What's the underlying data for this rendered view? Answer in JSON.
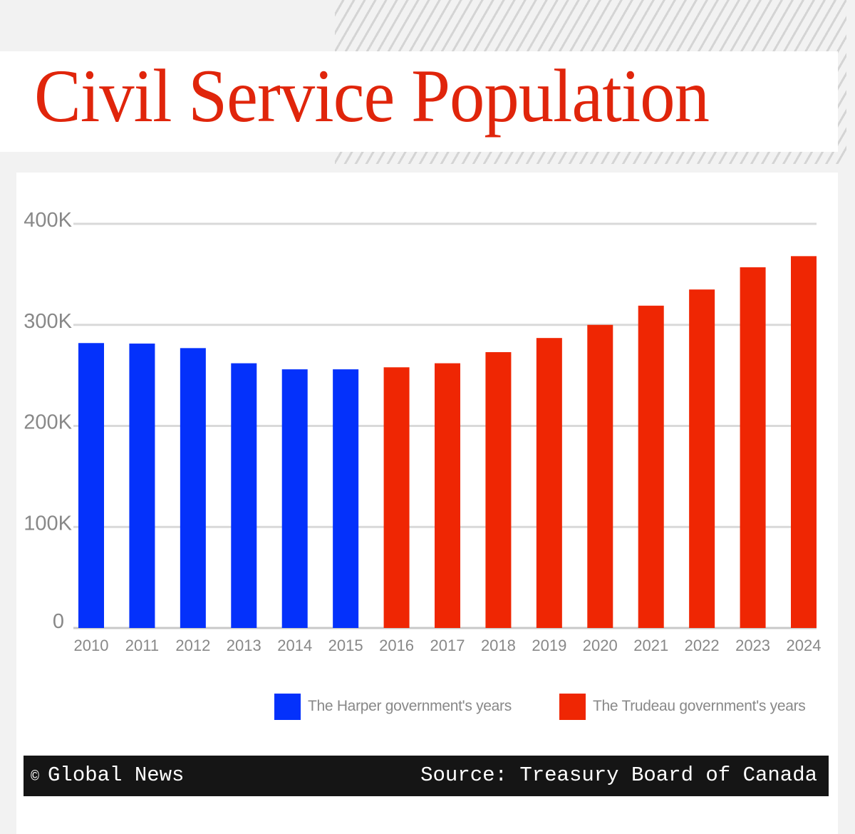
{
  "header": {
    "title": "Civil Service Population"
  },
  "colors": {
    "harper": "#0431fb",
    "trudeau": "#ef2603",
    "title": "#e0250b",
    "grid": "#d9d9d9"
  },
  "chart_data": {
    "type": "bar",
    "title": "Civil Service Population",
    "xlabel": "",
    "ylabel": "",
    "ylim": [
      0,
      400000
    ],
    "yticks": [
      0,
      100000,
      200000,
      300000,
      400000
    ],
    "ytick_labels": [
      "0",
      "100K",
      "200K",
      "300K",
      "400K"
    ],
    "grid": true,
    "legend_placement": "bottom-right",
    "categories": [
      "2010",
      "2011",
      "2012",
      "2013",
      "2014",
      "2015",
      "2016",
      "2017",
      "2018",
      "2019",
      "2020",
      "2021",
      "2022",
      "2023",
      "2024"
    ],
    "series": [
      {
        "name": "The Harper government's years",
        "color": "#0431fb",
        "values": [
          282000,
          281500,
          277000,
          262000,
          256000,
          256000,
          null,
          null,
          null,
          null,
          null,
          null,
          null,
          null,
          null
        ]
      },
      {
        "name": "The Trudeau government's years",
        "color": "#ef2603",
        "values": [
          null,
          null,
          null,
          null,
          null,
          null,
          258000,
          262000,
          273000,
          287000,
          300000,
          319000,
          335000,
          357000,
          368000
        ]
      }
    ]
  },
  "footer": {
    "copyright_symbol": "©",
    "credit": "Global News",
    "source": "Source: Treasury Board of Canada"
  }
}
